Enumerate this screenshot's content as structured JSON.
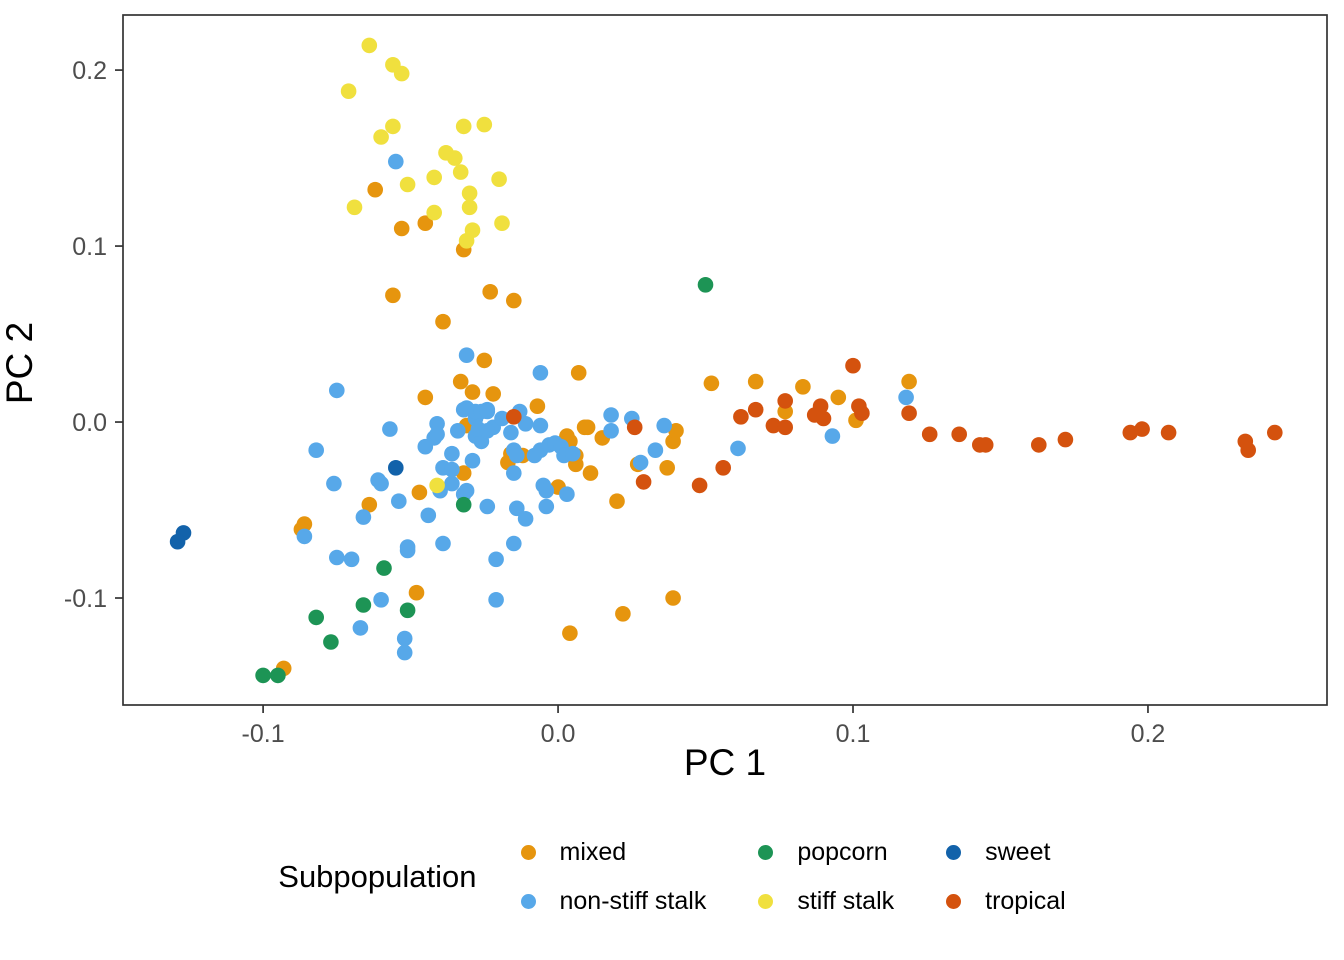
{
  "chart_data": {
    "type": "scatter",
    "title": "",
    "xlabel": "PC 1",
    "ylabel": "PC 2",
    "xlim": [
      -0.1475,
      0.2607
    ],
    "ylim": [
      -0.1608,
      0.2313
    ],
    "x_ticks": [
      -0.1,
      0.0,
      0.1,
      0.2
    ],
    "x_tick_labels": [
      "-0.1",
      "0.0",
      "0.1",
      "0.2"
    ],
    "y_ticks": [
      -0.1,
      0.0,
      0.1,
      0.2
    ],
    "y_tick_labels": [
      "-0.1",
      "0.0",
      "0.1",
      "0.2"
    ],
    "grid": false,
    "legend_position": "bottom",
    "legend_title": "Subpopulation",
    "panel_border_color": "#333333",
    "tick_label_color": "#4d4d4d",
    "point_radius": 7.8,
    "series": [
      {
        "name": "mixed",
        "color": "#E6950E",
        "points": [
          [
            -0.062,
            0.132
          ],
          [
            -0.053,
            0.11
          ],
          [
            -0.045,
            0.113
          ],
          [
            -0.032,
            0.098
          ],
          [
            -0.056,
            0.072
          ],
          [
            -0.023,
            0.074
          ],
          [
            -0.015,
            0.069
          ],
          [
            -0.039,
            0.057
          ],
          [
            -0.025,
            0.035
          ],
          [
            0.007,
            0.028
          ],
          [
            -0.033,
            0.023
          ],
          [
            -0.029,
            0.017
          ],
          [
            -0.022,
            0.016
          ],
          [
            -0.045,
            0.014
          ],
          [
            -0.031,
            -0.002
          ],
          [
            -0.007,
            0.009
          ],
          [
            -0.016,
            -0.018
          ],
          [
            -0.012,
            -0.019
          ],
          [
            0.003,
            -0.008
          ],
          [
            0.003,
            -0.012
          ],
          [
            0.006,
            -0.019
          ],
          [
            0.009,
            -0.003
          ],
          [
            0.015,
            -0.009
          ],
          [
            -0.017,
            -0.023
          ],
          [
            0.004,
            -0.011
          ],
          [
            0.006,
            -0.024
          ],
          [
            -0.032,
            -0.029
          ],
          [
            -0.047,
            -0.04
          ],
          [
            -0.064,
            -0.047
          ],
          [
            -0.086,
            -0.058
          ],
          [
            -0.087,
            -0.061
          ],
          [
            -0.093,
            -0.14
          ],
          [
            -0.048,
            -0.097
          ],
          [
            0.004,
            -0.12
          ],
          [
            0.022,
            -0.109
          ],
          [
            0.039,
            -0.1
          ],
          [
            0.0,
            -0.037
          ],
          [
            0.011,
            -0.029
          ],
          [
            0.01,
            -0.003
          ],
          [
            0.02,
            -0.045
          ],
          [
            0.027,
            -0.024
          ],
          [
            0.037,
            -0.026
          ],
          [
            0.039,
            -0.011
          ],
          [
            0.04,
            -0.005
          ],
          [
            0.052,
            0.022
          ],
          [
            0.067,
            0.023
          ],
          [
            0.077,
            0.006
          ],
          [
            0.083,
            0.02
          ],
          [
            0.095,
            0.014
          ],
          [
            0.101,
            0.001
          ],
          [
            0.119,
            0.023
          ]
        ]
      },
      {
        "name": "non-stiff stalk",
        "color": "#57A8E9",
        "points": [
          [
            -0.055,
            0.148
          ],
          [
            -0.075,
            0.018
          ],
          [
            -0.082,
            -0.016
          ],
          [
            -0.057,
            -0.004
          ],
          [
            -0.045,
            -0.014
          ],
          [
            -0.042,
            -0.009
          ],
          [
            -0.041,
            -0.001
          ],
          [
            -0.076,
            -0.035
          ],
          [
            -0.066,
            -0.054
          ],
          [
            -0.061,
            -0.033
          ],
          [
            -0.06,
            -0.035
          ],
          [
            -0.054,
            -0.045
          ],
          [
            -0.051,
            -0.071
          ],
          [
            -0.044,
            -0.053
          ],
          [
            -0.039,
            -0.069
          ],
          [
            -0.086,
            -0.065
          ],
          [
            -0.031,
            0.038
          ],
          [
            -0.006,
            0.028
          ],
          [
            -0.032,
            0.007
          ],
          [
            -0.028,
            0.002
          ],
          [
            -0.024,
            0.007
          ],
          [
            -0.022,
            -0.003
          ],
          [
            -0.019,
            0.002
          ],
          [
            -0.013,
            0.006
          ],
          [
            -0.011,
            -0.001
          ],
          [
            -0.006,
            -0.002
          ],
          [
            -0.028,
            -0.008
          ],
          [
            -0.026,
            -0.011
          ],
          [
            -0.034,
            -0.005
          ],
          [
            -0.027,
            -0.004
          ],
          [
            -0.024,
            -0.005
          ],
          [
            -0.016,
            -0.006
          ],
          [
            -0.041,
            -0.007
          ],
          [
            -0.015,
            -0.016
          ],
          [
            -0.014,
            -0.019
          ],
          [
            -0.008,
            -0.019
          ],
          [
            -0.006,
            -0.016
          ],
          [
            -0.003,
            -0.013
          ],
          [
            -0.001,
            -0.012
          ],
          [
            0.001,
            -0.014
          ],
          [
            0.002,
            -0.019
          ],
          [
            0.005,
            -0.018
          ],
          [
            -0.036,
            -0.018
          ],
          [
            -0.029,
            -0.022
          ],
          [
            -0.039,
            -0.026
          ],
          [
            -0.036,
            -0.027
          ],
          [
            -0.015,
            -0.029
          ],
          [
            -0.005,
            -0.036
          ],
          [
            -0.036,
            -0.035
          ],
          [
            -0.031,
            -0.039
          ],
          [
            -0.004,
            -0.039
          ],
          [
            -0.032,
            -0.041
          ],
          [
            -0.024,
            -0.048
          ],
          [
            -0.014,
            -0.049
          ],
          [
            -0.011,
            -0.055
          ],
          [
            -0.004,
            -0.048
          ],
          [
            0.003,
            -0.041
          ],
          [
            -0.04,
            -0.039
          ],
          [
            -0.075,
            -0.077
          ],
          [
            -0.07,
            -0.078
          ],
          [
            -0.051,
            -0.073
          ],
          [
            -0.021,
            -0.078
          ],
          [
            -0.06,
            -0.101
          ],
          [
            -0.021,
            -0.101
          ],
          [
            -0.067,
            -0.117
          ],
          [
            -0.052,
            -0.123
          ],
          [
            -0.052,
            -0.131
          ],
          [
            -0.015,
            -0.069
          ],
          [
            0.018,
            0.004
          ],
          [
            0.018,
            -0.005
          ],
          [
            0.025,
            0.002
          ],
          [
            0.036,
            -0.002
          ],
          [
            0.033,
            -0.016
          ],
          [
            0.028,
            -0.023
          ],
          [
            0.061,
            -0.015
          ],
          [
            0.093,
            -0.008
          ],
          [
            0.118,
            0.014
          ],
          [
            -0.031,
            0.008
          ],
          [
            -0.028,
            0.006
          ],
          [
            -0.026,
            0.006
          ],
          [
            -0.024,
            0.006
          ]
        ]
      },
      {
        "name": "popcorn",
        "color": "#1D9455",
        "points": [
          [
            0.05,
            0.078
          ],
          [
            -0.032,
            -0.047
          ],
          [
            -0.059,
            -0.083
          ],
          [
            -0.066,
            -0.104
          ],
          [
            -0.051,
            -0.107
          ],
          [
            -0.082,
            -0.111
          ],
          [
            -0.077,
            -0.125
          ],
          [
            -0.1,
            -0.144
          ],
          [
            -0.095,
            -0.144
          ]
        ]
      },
      {
        "name": "stiff stalk",
        "color": "#F0E03E",
        "points": [
          [
            -0.064,
            0.214
          ],
          [
            -0.056,
            0.203
          ],
          [
            -0.053,
            0.198
          ],
          [
            -0.071,
            0.188
          ],
          [
            -0.056,
            0.168
          ],
          [
            -0.06,
            0.162
          ],
          [
            -0.032,
            0.168
          ],
          [
            -0.025,
            0.169
          ],
          [
            -0.038,
            0.153
          ],
          [
            -0.035,
            0.15
          ],
          [
            -0.033,
            0.142
          ],
          [
            -0.051,
            0.135
          ],
          [
            -0.042,
            0.139
          ],
          [
            -0.02,
            0.138
          ],
          [
            -0.069,
            0.122
          ],
          [
            -0.03,
            0.13
          ],
          [
            -0.03,
            0.122
          ],
          [
            -0.042,
            0.119
          ],
          [
            -0.019,
            0.113
          ],
          [
            -0.029,
            0.109
          ],
          [
            -0.031,
            0.103
          ],
          [
            -0.041,
            -0.036
          ]
        ]
      },
      {
        "name": "sweet",
        "color": "#1262AA",
        "points": [
          [
            -0.127,
            -0.063
          ],
          [
            -0.129,
            -0.068
          ],
          [
            -0.055,
            -0.026
          ]
        ]
      },
      {
        "name": "tropical",
        "color": "#D4520E",
        "points": [
          [
            -0.015,
            0.003
          ],
          [
            0.026,
            -0.003
          ],
          [
            0.029,
            -0.034
          ],
          [
            0.048,
            -0.036
          ],
          [
            0.056,
            -0.026
          ],
          [
            0.062,
            0.003
          ],
          [
            0.067,
            0.007
          ],
          [
            0.077,
            0.012
          ],
          [
            0.073,
            -0.002
          ],
          [
            0.077,
            -0.003
          ],
          [
            0.1,
            0.032
          ],
          [
            0.089,
            0.009
          ],
          [
            0.087,
            0.004
          ],
          [
            0.09,
            0.002
          ],
          [
            0.102,
            0.009
          ],
          [
            0.103,
            0.005
          ],
          [
            0.119,
            0.005
          ],
          [
            0.126,
            -0.007
          ],
          [
            0.136,
            -0.007
          ],
          [
            0.143,
            -0.013
          ],
          [
            0.145,
            -0.013
          ],
          [
            0.163,
            -0.013
          ],
          [
            0.172,
            -0.01
          ],
          [
            0.194,
            -0.006
          ],
          [
            0.198,
            -0.004
          ],
          [
            0.207,
            -0.006
          ],
          [
            0.233,
            -0.011
          ],
          [
            0.234,
            -0.016
          ],
          [
            0.243,
            -0.006
          ]
        ]
      }
    ]
  }
}
